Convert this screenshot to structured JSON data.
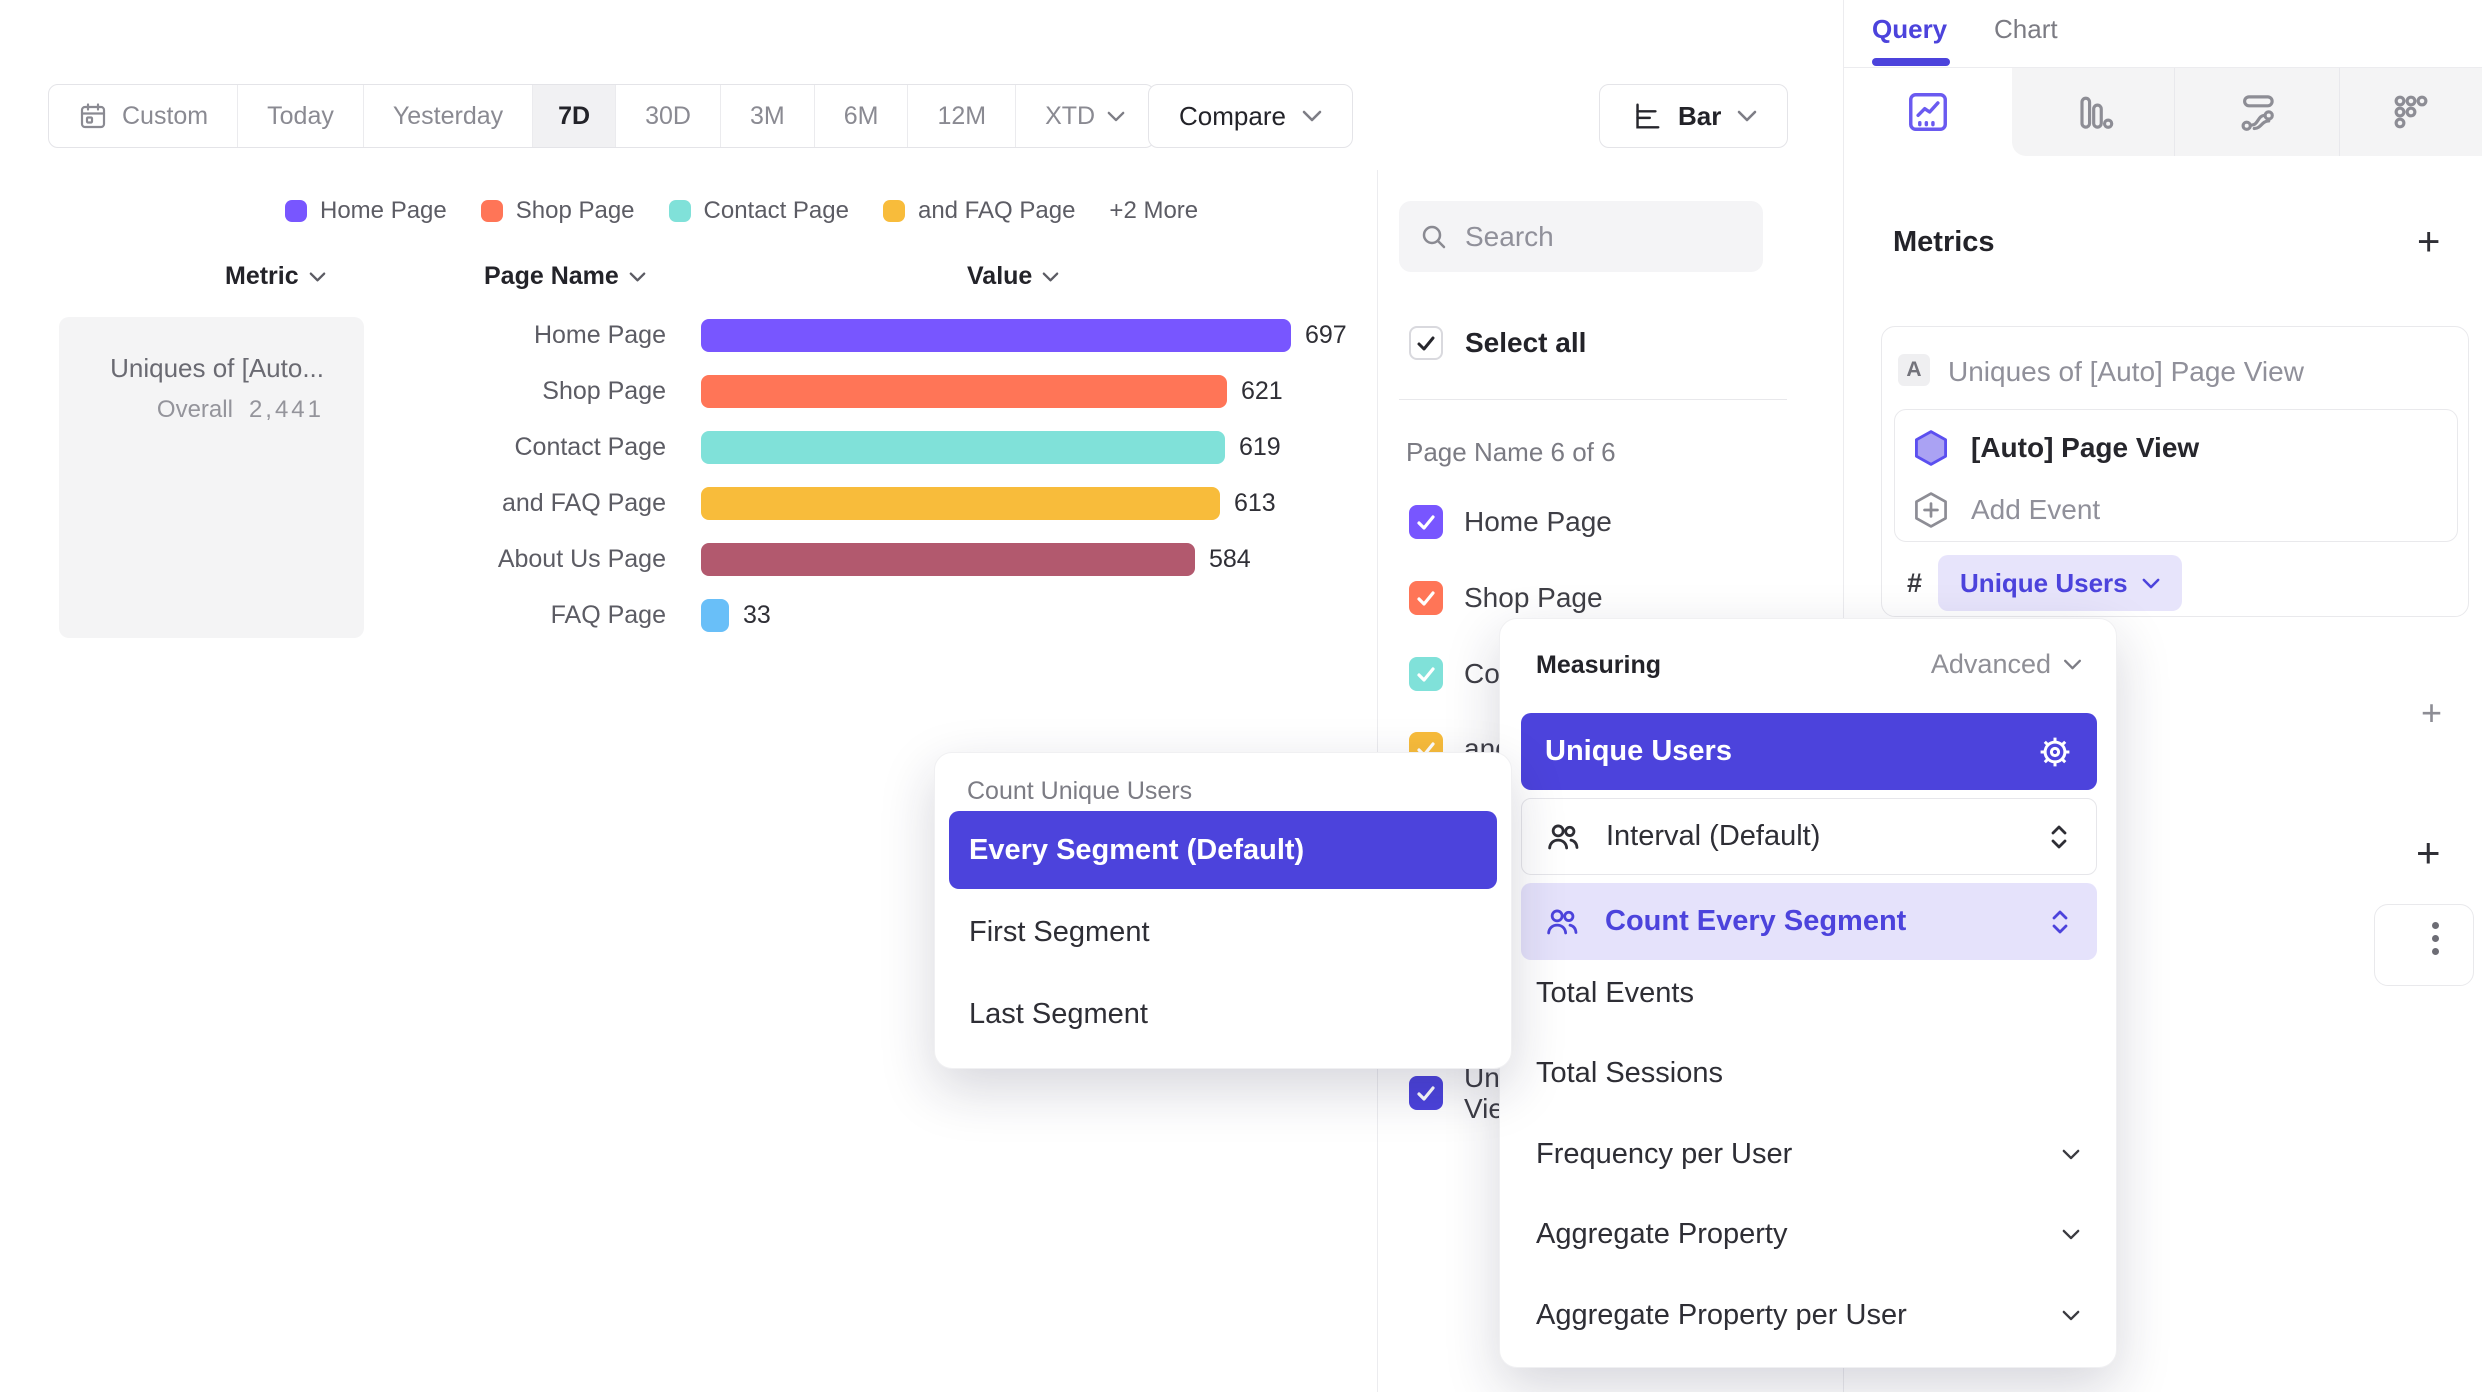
{
  "toolbar": {
    "date_ranges": [
      {
        "label": "Custom",
        "icon": "calendar-icon",
        "active": false
      },
      {
        "label": "Today",
        "active": false
      },
      {
        "label": "Yesterday",
        "active": false
      },
      {
        "label": "7D",
        "active": true
      },
      {
        "label": "30D",
        "active": false
      },
      {
        "label": "3M",
        "active": false
      },
      {
        "label": "6M",
        "active": false
      },
      {
        "label": "12M",
        "active": false
      },
      {
        "label": "XTD",
        "active": false,
        "chevron": true
      }
    ],
    "compare_label": "Compare",
    "chart_type": {
      "label": "Bar",
      "icon": "horizontal-bar-chart-icon"
    }
  },
  "legend": {
    "items": [
      {
        "label": "Home Page",
        "color": "#7856FF"
      },
      {
        "label": "Shop Page",
        "color": "#FF7557"
      },
      {
        "label": "Contact Page",
        "color": "#80E1D9"
      },
      {
        "label": "and FAQ Page",
        "color": "#F8BC3B"
      }
    ],
    "more_label": "+2 More"
  },
  "table_header": {
    "metric": "Metric",
    "page_name": "Page Name",
    "value": "Value"
  },
  "metric_card": {
    "title": "Uniques of [Auto...",
    "overall_label": "Overall",
    "overall_value": "2,441"
  },
  "chart_data": {
    "type": "bar",
    "orientation": "horizontal",
    "categories": [
      "Home Page",
      "Shop Page",
      "Contact Page",
      "and FAQ Page",
      "About Us Page",
      "FAQ Page"
    ],
    "values": [
      697,
      621,
      619,
      613,
      584,
      33
    ],
    "colors": [
      "#7856FF",
      "#FF7557",
      "#80E1D9",
      "#F8BC3B",
      "#B2596E",
      "#69BFF8"
    ],
    "series_label": "Uniques of [Auto] Page View",
    "overall_value": 2441,
    "xlim": [
      0,
      697
    ],
    "grid": false,
    "legend_position": "top"
  },
  "filter_panel": {
    "search_placeholder": "Search",
    "select_all_label": "Select all",
    "section_label": "Page Name 6 of 6",
    "items": [
      {
        "label": "Home Page",
        "color": "#7856FF",
        "checked": true
      },
      {
        "label": "Shop Page",
        "color": "#FF7557",
        "checked": true
      },
      {
        "label": "Contact Page",
        "color": "#80E1D9",
        "checked": true
      },
      {
        "label": "and FAQ Page",
        "color": "#F8BC3B",
        "checked": true
      },
      {
        "label": "About Us Page",
        "color": "#B2596E",
        "checked": true
      },
      {
        "label": "FAQ Page",
        "color": "#69BFF8",
        "checked": true
      }
    ],
    "metric_item": {
      "lines": [
        "Uniques of [Auto] Page",
        "View"
      ],
      "color": "#4C43DC",
      "checked": true
    }
  },
  "query_panel": {
    "tabs": [
      {
        "label": "Query",
        "active": true
      },
      {
        "label": "Chart",
        "active": false
      }
    ],
    "report_type_tabs": [
      {
        "icon": "insights-icon",
        "active": true
      },
      {
        "icon": "bar-chart-icon",
        "active": false
      },
      {
        "icon": "flows-icon",
        "active": false
      },
      {
        "icon": "retention-icon",
        "active": false
      }
    ],
    "metrics_heading": "Metrics",
    "add_metric_label": "+",
    "metric_row": {
      "badge": "A",
      "title": "Uniques of [Auto] Page View",
      "event_label": "[Auto] Page View",
      "add_event_label": "Add Event",
      "hash_symbol": "#",
      "measurement_chip": "Unique Users"
    },
    "add_filter_label": "+",
    "add_breakdown_label": "+"
  },
  "segment_menu": {
    "title": "Count Unique Users",
    "options": [
      {
        "label": "Every Segment (Default)",
        "selected": true
      },
      {
        "label": "First Segment",
        "selected": false
      },
      {
        "label": "Last Segment",
        "selected": false
      }
    ]
  },
  "measuring_menu": {
    "title": "Measuring",
    "advanced_label": "Advanced",
    "selected_option": "Unique Users",
    "sub_rows": [
      {
        "label": "Interval (Default)",
        "variant": "outline",
        "icon": "people-icon"
      },
      {
        "label": "Count Every Segment",
        "variant": "tint",
        "icon": "people-icon"
      }
    ],
    "options": [
      {
        "label": "Total Events",
        "chevron": false
      },
      {
        "label": "Total Sessions",
        "chevron": false
      },
      {
        "label": "Frequency per User",
        "chevron": true
      },
      {
        "label": "Aggregate Property",
        "chevron": true
      },
      {
        "label": "Aggregate Property per User",
        "chevron": true
      }
    ]
  },
  "colors": {
    "accent_indigo": "#4C43DC",
    "chip_bg": "#E7E4FB",
    "tint_row_bg": "#E5E2FB",
    "panel_gray": "#F4F4F5"
  },
  "icons": {
    "calendar-icon": "calendar outline",
    "chevron-down-icon": "v chevron",
    "horizontal-bar-chart-icon": "axis with horizontal bars",
    "search-icon": "magnifier",
    "checkmark-icon": "check",
    "insights-icon": "framed trend line",
    "bar-chart-icon": "three vertical bars",
    "flows-icon": "pill and wave with nodes",
    "retention-icon": "triangle of dots",
    "gear-icon": "cog",
    "people-icon": "two users",
    "stepper-icon": "up-down chevrons",
    "plus-icon": "+",
    "kebab-icon": "vertical three dots",
    "hexagon-icon": "purple hexagon",
    "hexagon-plus-icon": "hexagon with plus"
  }
}
